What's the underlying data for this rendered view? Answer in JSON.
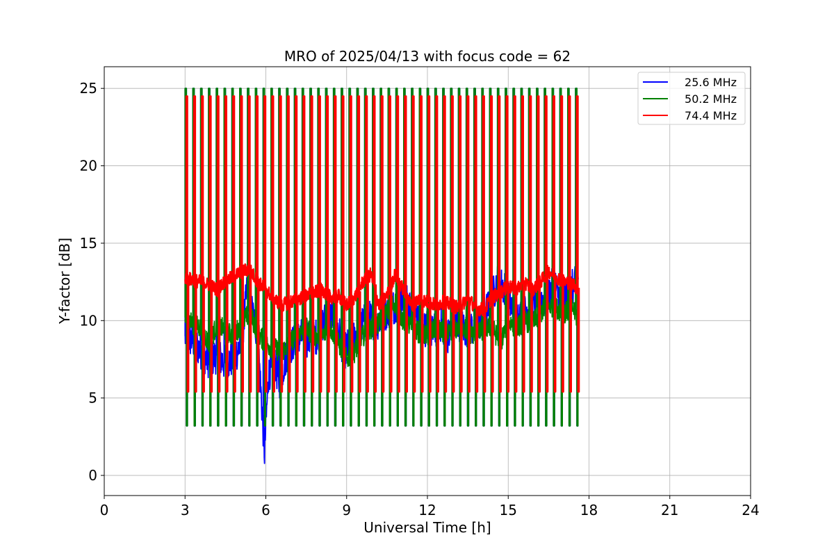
{
  "chart_data": {
    "type": "line",
    "title": "MRO of 2025/04/13 with focus code = 62",
    "xlabel": "Universal Time [h]",
    "ylabel": "Y-factor [dB]",
    "xlim": [
      0,
      24
    ],
    "ylim": [
      -1.3,
      26.4
    ],
    "x_ticks": [
      0,
      3,
      6,
      9,
      12,
      15,
      18,
      21,
      24
    ],
    "y_ticks": [
      0,
      5,
      10,
      15,
      20,
      25
    ],
    "grid": true,
    "legend_position": "top-right",
    "cal_pulses": {
      "start_h": 3.0,
      "end_h": 17.5,
      "count": 51,
      "green_peak": 25.0,
      "red_peak": 24.5,
      "low_level": 3.2
    },
    "series": [
      {
        "name": "25.6 MHz",
        "color": "#0000ff",
        "x": [
          3.0,
          3.3,
          3.6,
          3.9,
          4.2,
          4.5,
          4.8,
          5.1,
          5.3,
          5.5,
          5.7,
          5.85,
          5.95,
          6.1,
          6.3,
          6.5,
          6.8,
          7.1,
          7.4,
          7.7,
          8.0,
          8.3,
          8.6,
          8.9,
          9.2,
          9.5,
          9.8,
          10.1,
          10.4,
          10.7,
          11.0,
          11.3,
          11.6,
          11.9,
          12.2,
          12.5,
          12.8,
          13.1,
          13.4,
          13.7,
          14.0,
          14.3,
          14.6,
          14.9,
          15.2,
          15.5,
          15.8,
          16.1,
          16.4,
          16.7,
          17.0,
          17.3,
          17.6
        ],
        "y": [
          9.0,
          8.7,
          8.0,
          7.4,
          7.8,
          7.2,
          7.6,
          8.5,
          12.0,
          10.5,
          9.0,
          4.5,
          1.5,
          6.5,
          7.5,
          6.0,
          8.0,
          8.8,
          9.0,
          8.6,
          9.3,
          10.5,
          10.0,
          8.0,
          8.6,
          9.6,
          10.2,
          9.8,
          10.5,
          10.8,
          11.5,
          11.0,
          10.4,
          9.5,
          9.2,
          9.8,
          9.0,
          10.0,
          9.4,
          9.6,
          10.0,
          11.0,
          12.5,
          12.0,
          10.5,
          10.2,
          11.0,
          11.5,
          11.2,
          12.5,
          11.0,
          12.0,
          12.5
        ]
      },
      {
        "name": "50.2 MHz",
        "color": "#008000",
        "x": [
          3.0,
          3.3,
          3.6,
          3.9,
          4.2,
          4.5,
          4.8,
          5.1,
          5.4,
          5.7,
          6.0,
          6.3,
          6.6,
          6.9,
          7.2,
          7.5,
          7.8,
          8.1,
          8.4,
          8.7,
          9.0,
          9.3,
          9.6,
          9.9,
          10.2,
          10.5,
          10.8,
          11.1,
          11.4,
          11.7,
          12.0,
          12.3,
          12.6,
          12.9,
          13.2,
          13.5,
          13.8,
          14.1,
          14.4,
          14.7,
          15.0,
          15.3,
          15.6,
          15.9,
          16.2,
          16.5,
          16.8,
          17.1,
          17.4,
          17.6
        ],
        "y": [
          10.2,
          9.8,
          9.5,
          8.5,
          9.8,
          9.3,
          9.0,
          9.8,
          10.5,
          9.2,
          8.5,
          8.2,
          8.0,
          8.6,
          9.2,
          9.5,
          9.0,
          9.0,
          9.5,
          8.5,
          7.5,
          8.0,
          9.0,
          9.5,
          9.8,
          10.5,
          11.2,
          10.0,
          9.6,
          9.2,
          9.0,
          9.5,
          9.2,
          9.0,
          9.8,
          9.3,
          9.0,
          9.5,
          9.6,
          8.5,
          10.0,
          9.5,
          10.0,
          9.8,
          10.5,
          11.0,
          10.8,
          10.5,
          10.8,
          10.0
        ]
      },
      {
        "name": "74.4 MHz",
        "color": "#ff0000",
        "x": [
          3.0,
          3.3,
          3.6,
          3.9,
          4.2,
          4.5,
          4.8,
          5.1,
          5.4,
          5.7,
          6.0,
          6.3,
          6.6,
          6.9,
          7.2,
          7.5,
          7.8,
          8.1,
          8.4,
          8.7,
          9.0,
          9.3,
          9.6,
          9.9,
          10.2,
          10.5,
          10.8,
          11.1,
          11.4,
          11.7,
          12.0,
          12.3,
          12.6,
          12.9,
          13.2,
          13.5,
          13.8,
          14.1,
          14.4,
          14.7,
          15.0,
          15.3,
          15.6,
          15.9,
          16.2,
          16.5,
          16.8,
          17.1,
          17.4,
          17.6
        ],
        "y": [
          12.8,
          12.6,
          12.5,
          12.3,
          12.0,
          12.6,
          12.8,
          13.2,
          13.3,
          12.5,
          12.0,
          11.4,
          11.0,
          11.2,
          11.4,
          11.6,
          11.8,
          12.0,
          11.5,
          11.6,
          11.0,
          11.5,
          12.5,
          13.0,
          11.0,
          11.6,
          13.0,
          12.0,
          11.0,
          11.4,
          11.2,
          11.0,
          11.2,
          11.0,
          10.8,
          11.5,
          10.8,
          10.7,
          11.5,
          11.8,
          12.2,
          12.0,
          12.5,
          12.0,
          12.5,
          13.2,
          12.8,
          12.5,
          12.4,
          12.0
        ]
      }
    ]
  }
}
